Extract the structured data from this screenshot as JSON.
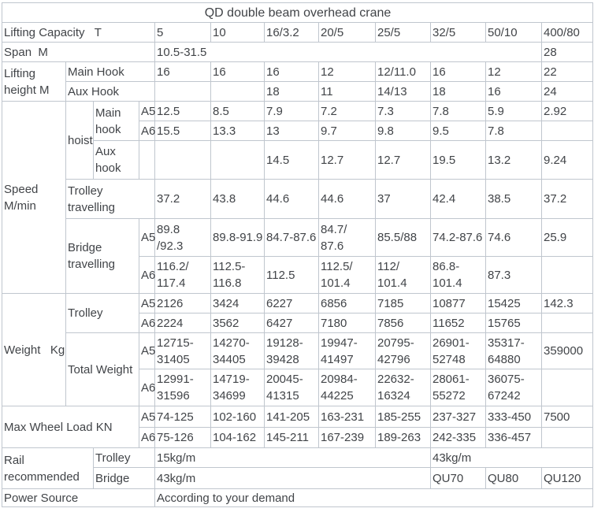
{
  "chart_data": {
    "type": "table",
    "title": "QD double beam overhead crane",
    "rows": [
      [
        {
          "v": "QD double beam overhead crane",
          "cs": 12,
          "cls": "ttl",
          "n": "table-title"
        }
      ],
      [
        {
          "v": "Lifting Capacity   T",
          "cs": 4,
          "cls": "lbl",
          "n": "lifting-capacity-label"
        },
        {
          "v": "5"
        },
        {
          "v": "10"
        },
        {
          "v": "16/3.2"
        },
        {
          "v": "20/5"
        },
        {
          "v": "25/5"
        },
        {
          "v": "32/5"
        },
        {
          "v": "50/10"
        },
        {
          "v": "400/80"
        }
      ],
      [
        {
          "v": "Span  M",
          "cs": 4,
          "cls": "lbl",
          "n": "span-label"
        },
        {
          "v": "10.5-31.5",
          "cs": 7
        },
        {
          "v": "28"
        }
      ],
      [
        {
          "v": "Lifting\nheight M",
          "rs": 2,
          "cls": "lbl",
          "n": "lifting-height-label"
        },
        {
          "v": "Main Hook",
          "cs": 3,
          "cls": "lbl",
          "n": "main-hook-label"
        },
        {
          "v": "16"
        },
        {
          "v": "16"
        },
        {
          "v": "16"
        },
        {
          "v": "12"
        },
        {
          "v": "12/11.0"
        },
        {
          "v": "16"
        },
        {
          "v": "12"
        },
        {
          "v": "22"
        }
      ],
      [
        {
          "v": "Aux Hook",
          "cs": 3,
          "cls": "lbl",
          "n": "aux-hook-label"
        },
        {
          "v": ""
        },
        {
          "v": ""
        },
        {
          "v": "18"
        },
        {
          "v": "11"
        },
        {
          "v": "14/13"
        },
        {
          "v": "18"
        },
        {
          "v": "16"
        },
        {
          "v": "24"
        }
      ],
      [
        {
          "v": "Speed\nM/min",
          "rs": 6,
          "cls": "lbl",
          "n": "speed-label"
        },
        {
          "v": "hoist",
          "rs": 3,
          "cls": "lbl",
          "n": "hoist-label"
        },
        {
          "v": "Main\nhook",
          "rs": 2,
          "cls": "lbl",
          "n": "hoist-main-hook-label"
        },
        {
          "v": "A5",
          "cls": "lbl",
          "n": "a5-label"
        },
        {
          "v": "12.5"
        },
        {
          "v": "8.5"
        },
        {
          "v": "7.9"
        },
        {
          "v": "7.2"
        },
        {
          "v": "7.3"
        },
        {
          "v": "7.8"
        },
        {
          "v": "5.9"
        },
        {
          "v": "2.92"
        }
      ],
      [
        {
          "v": "A6",
          "cls": "lbl",
          "n": "a6-label"
        },
        {
          "v": "15.5"
        },
        {
          "v": "13.3"
        },
        {
          "v": "13"
        },
        {
          "v": "9.7"
        },
        {
          "v": "9.8"
        },
        {
          "v": "9.5"
        },
        {
          "v": "7.8"
        },
        {
          "v": ""
        }
      ],
      [
        {
          "v": "Aux\nhook",
          "cls": "lbl",
          "n": "hoist-aux-hook-label"
        },
        {
          "v": ""
        },
        {
          "v": ""
        },
        {
          "v": ""
        },
        {
          "v": "14.5"
        },
        {
          "v": "12.7"
        },
        {
          "v": "12.7"
        },
        {
          "v": "19.5"
        },
        {
          "v": "13.2"
        },
        {
          "v": "9.24"
        }
      ],
      [
        {
          "v": "Trolley\ntravelling",
          "cs": 3,
          "cls": "lbl",
          "n": "trolley-travelling-label"
        },
        {
          "v": "37.2"
        },
        {
          "v": "43.8"
        },
        {
          "v": "44.6"
        },
        {
          "v": "44.6"
        },
        {
          "v": "37"
        },
        {
          "v": "42.4"
        },
        {
          "v": "38.5"
        },
        {
          "v": "37.2"
        }
      ],
      [
        {
          "v": "Bridge\ntravelling",
          "cs": 2,
          "rs": 2,
          "cls": "lbl",
          "n": "bridge-travelling-label"
        },
        {
          "v": "A5",
          "cls": "lbl",
          "n": "a5-label"
        },
        {
          "v": "89.8\n/92.3"
        },
        {
          "v": "89.8-91.9"
        },
        {
          "v": "84.7-87.6"
        },
        {
          "v": "84.7/\n87.6"
        },
        {
          "v": "85.5/88"
        },
        {
          "v": "74.2-87.6"
        },
        {
          "v": "74.6"
        },
        {
          "v": "25.9"
        }
      ],
      [
        {
          "v": "A6",
          "cls": "lbl",
          "n": "a6-label"
        },
        {
          "v": "116.2/\n117.4"
        },
        {
          "v": "112.5-\n116.8"
        },
        {
          "v": "112.5"
        },
        {
          "v": "112.5/\n101.4"
        },
        {
          "v": "112/\n101.4"
        },
        {
          "v": "86.8-\n101.4"
        },
        {
          "v": "87.3"
        },
        {
          "v": ""
        }
      ],
      [
        {
          "v": "Weight   Kg",
          "rs": 4,
          "cls": "lbl",
          "n": "weight-label"
        },
        {
          "v": "Trolley",
          "cs": 2,
          "rs": 2,
          "cls": "lbl",
          "n": "trolley-weight-label"
        },
        {
          "v": "A5",
          "cls": "lbl",
          "n": "a5-label"
        },
        {
          "v": "2126"
        },
        {
          "v": "3424"
        },
        {
          "v": "6227"
        },
        {
          "v": "6856"
        },
        {
          "v": "7185"
        },
        {
          "v": "10877"
        },
        {
          "v": "15425"
        },
        {
          "v": "142.3"
        }
      ],
      [
        {
          "v": "A6",
          "cls": "lbl",
          "n": "a6-label"
        },
        {
          "v": "2224"
        },
        {
          "v": "3562"
        },
        {
          "v": "6427"
        },
        {
          "v": "7180"
        },
        {
          "v": "7856"
        },
        {
          "v": "11652"
        },
        {
          "v": "15765"
        },
        {
          "v": ""
        }
      ],
      [
        {
          "v": "Total Weight",
          "cs": 2,
          "rs": 2,
          "cls": "lbl",
          "n": "total-weight-label"
        },
        {
          "v": "A5",
          "cls": "lbl",
          "n": "a5-label"
        },
        {
          "v": "12715-\n31405"
        },
        {
          "v": "14270-\n34405"
        },
        {
          "v": "19128-\n39428"
        },
        {
          "v": "19947-\n41497"
        },
        {
          "v": "20795-\n42796"
        },
        {
          "v": "26901-\n52748"
        },
        {
          "v": "35317-\n64880"
        },
        {
          "v": "359000"
        }
      ],
      [
        {
          "v": "A6",
          "cls": "lbl",
          "n": "a6-label"
        },
        {
          "v": "12991-\n31596"
        },
        {
          "v": "14719-\n34699"
        },
        {
          "v": "20045-\n41315"
        },
        {
          "v": "20984-\n44225"
        },
        {
          "v": "22632-\n16324"
        },
        {
          "v": "28061-\n55272"
        },
        {
          "v": "36075-\n67242"
        },
        {
          "v": ""
        }
      ],
      [
        {
          "v": "Max Wheel Load KN",
          "cs": 3,
          "rs": 2,
          "cls": "lbl",
          "n": "max-wheel-load-label"
        },
        {
          "v": "A5",
          "cls": "lbl",
          "n": "a5-label"
        },
        {
          "v": "74-125"
        },
        {
          "v": "102-160"
        },
        {
          "v": "141-205"
        },
        {
          "v": "163-231"
        },
        {
          "v": "185-255"
        },
        {
          "v": "237-327"
        },
        {
          "v": "333-450"
        },
        {
          "v": "7500"
        }
      ],
      [
        {
          "v": "A6",
          "cls": "lbl",
          "n": "a6-label"
        },
        {
          "v": "75-126"
        },
        {
          "v": "104-162"
        },
        {
          "v": "145-211"
        },
        {
          "v": "167-239"
        },
        {
          "v": "189-263"
        },
        {
          "v": "242-335"
        },
        {
          "v": "336-457"
        },
        {
          "v": ""
        }
      ],
      [
        {
          "v": "Rail\nrecommended",
          "cs": 2,
          "rs": 2,
          "cls": "lbl",
          "n": "rail-recommended-label"
        },
        {
          "v": "Trolley",
          "cs": 2,
          "cls": "lbl",
          "n": "rail-trolley-label"
        },
        {
          "v": "15kg/m",
          "cs": 5
        },
        {
          "v": "43kg/m",
          "cs": 3
        }
      ],
      [
        {
          "v": "Bridge",
          "cs": 2,
          "cls": "lbl",
          "n": "rail-bridge-label"
        },
        {
          "v": "43kg/m",
          "cs": 5
        },
        {
          "v": "QU70"
        },
        {
          "v": "QU80"
        },
        {
          "v": "QU120"
        }
      ],
      [
        {
          "v": "Power Source",
          "cs": 4,
          "cls": "lbl",
          "n": "power-source-label"
        },
        {
          "v": "According to your demand",
          "cs": 8,
          "n": "power-source-value"
        }
      ]
    ]
  },
  "colors": {
    "text": "#414448",
    "border": "#c0c6ce"
  }
}
